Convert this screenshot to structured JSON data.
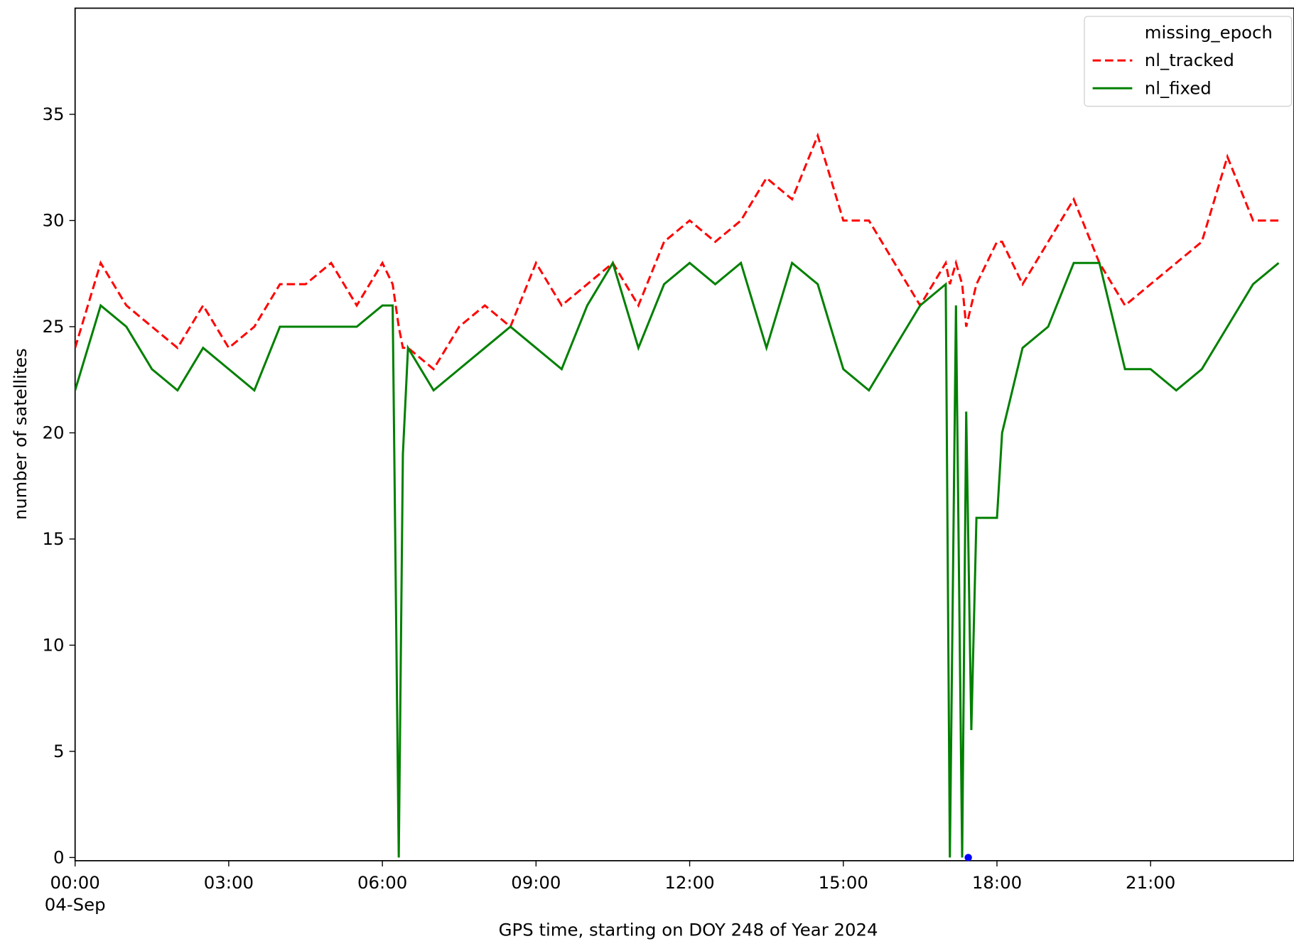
{
  "chart_data": {
    "type": "line",
    "xlabel": "GPS time, starting on DOY 248 of Year 2024",
    "ylabel": "number of satellites",
    "x_date_label": "04-Sep",
    "x": [
      0,
      0.5,
      1,
      1.5,
      2,
      2.5,
      3,
      3.5,
      4,
      4.5,
      5,
      5.5,
      6,
      6.2,
      6.32,
      6.4,
      6.5,
      7,
      7.5,
      8,
      8.5,
      9,
      9.5,
      10,
      10.5,
      11,
      11.5,
      12,
      12.5,
      13,
      13.5,
      14,
      14.5,
      15,
      15.5,
      16,
      16.5,
      17,
      17.08,
      17.2,
      17.32,
      17.4,
      17.5,
      17.6,
      18,
      18.1,
      18.5,
      19,
      19.5,
      20,
      20.5,
      21,
      21.5,
      22,
      22.5,
      23,
      23.5
    ],
    "series": [
      {
        "name": "missing_epoch",
        "color": "#0000ff",
        "marker": true,
        "x": [
          17.44
        ],
        "values": [
          0
        ]
      },
      {
        "name": "nl_tracked",
        "color": "#ff0000",
        "dash": true,
        "values": [
          24,
          28,
          26,
          25,
          24,
          26,
          24,
          25,
          27,
          27,
          28,
          26,
          28,
          27,
          25,
          24,
          24,
          23,
          25,
          26,
          25,
          28,
          26,
          27,
          28,
          26,
          29,
          30,
          29,
          30,
          32,
          31,
          34,
          30,
          30,
          28,
          26,
          28,
          27,
          28,
          27,
          25,
          26,
          27,
          29,
          29,
          27,
          29,
          31,
          28,
          26,
          27,
          28,
          29,
          33,
          30,
          30
        ]
      },
      {
        "name": "nl_fixed",
        "color": "#008000",
        "values": [
          22,
          26,
          25,
          23,
          22,
          24,
          23,
          22,
          25,
          25,
          25,
          25,
          26,
          26,
          0,
          19,
          24,
          22,
          23,
          24,
          25,
          24,
          23,
          26,
          28,
          24,
          27,
          28,
          27,
          28,
          24,
          28,
          27,
          23,
          22,
          24,
          26,
          27,
          0,
          26,
          0,
          21,
          6,
          16,
          16,
          20,
          24,
          25,
          28,
          28,
          23,
          23,
          22,
          23,
          25,
          27,
          28
        ]
      }
    ],
    "xlim": [
      0,
      23.8
    ],
    "ylim": [
      -0.15,
      40
    ],
    "xticks": [
      {
        "value": 0,
        "label": "00:00"
      },
      {
        "value": 3,
        "label": "03:00"
      },
      {
        "value": 6,
        "label": "06:00"
      },
      {
        "value": 9,
        "label": "09:00"
      },
      {
        "value": 12,
        "label": "12:00"
      },
      {
        "value": 15,
        "label": "15:00"
      },
      {
        "value": 18,
        "label": "18:00"
      },
      {
        "value": 21,
        "label": "21:00"
      }
    ],
    "yticks": [
      0,
      5,
      10,
      15,
      20,
      25,
      30,
      35
    ],
    "legend": "upper right",
    "grid": false
  }
}
